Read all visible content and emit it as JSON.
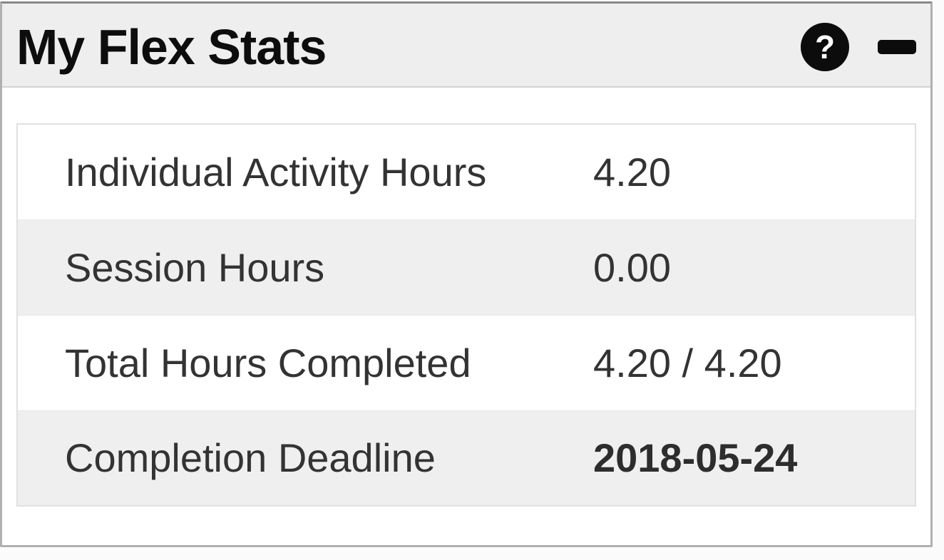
{
  "panel": {
    "title": "My Flex Stats",
    "header": {
      "help_icon": {
        "name": "help-icon",
        "glyph": "?"
      },
      "minimize_icon": {
        "name": "minimize-icon"
      }
    },
    "colors": {
      "header_bg": "#eeeeee",
      "row_stripe": "#efefef",
      "icon_bg": "#0c0c0c",
      "text": "#333333",
      "table_border": "#e0e0e0",
      "panel_border": "#b0b0b0"
    }
  },
  "stats": {
    "rows": [
      {
        "label": "Individual Activity Hours",
        "value": "4.20"
      },
      {
        "label": "Session Hours",
        "value": "0.00"
      },
      {
        "label": "Total Hours Completed",
        "value": "4.20 / 4.20"
      },
      {
        "label": "Completion Deadline",
        "value": "2018-05-24"
      }
    ]
  }
}
